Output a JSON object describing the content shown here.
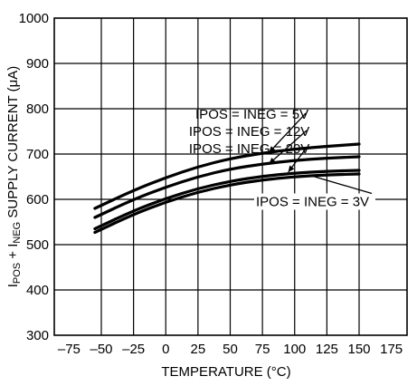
{
  "chart_data": {
    "type": "line",
    "xlabel": "TEMPERATURE (°C)",
    "ylabel_parts": {
      "i1": "I",
      "sub1": "POS",
      "mid": " + I",
      "sub2": "NEG",
      "rest": " SUPPLY CURRENT (μA)"
    },
    "xlim": [
      -75,
      175
    ],
    "ylim": [
      300,
      1000
    ],
    "xticks": [
      -75,
      -50,
      -25,
      0,
      25,
      50,
      75,
      100,
      125,
      150,
      175
    ],
    "xtick_labels": [
      "–75",
      "–50",
      "–25",
      "0",
      "25",
      "50",
      "75",
      "100",
      "125",
      "150",
      "175"
    ],
    "yticks": [
      300,
      400,
      500,
      600,
      700,
      800,
      900,
      1000
    ],
    "ytick_labels": [
      "300",
      "400",
      "500",
      "600",
      "700",
      "800",
      "900",
      "1000"
    ],
    "grid": true,
    "series": [
      {
        "x": [
          -55,
          -25,
          0,
          25,
          50,
          75,
          100,
          125,
          150
        ],
        "values": [
          580,
          620,
          648,
          672,
          690,
          702,
          711,
          717,
          722
        ]
      },
      {
        "x": [
          -55,
          -25,
          0,
          25,
          50,
          75,
          100,
          125,
          150
        ],
        "values": [
          560,
          600,
          627,
          650,
          667,
          678,
          686,
          691,
          694
        ]
      },
      {
        "x": [
          -55,
          -25,
          0,
          25,
          50,
          75,
          100,
          125,
          150
        ],
        "values": [
          535,
          575,
          602,
          624,
          640,
          651,
          658,
          662,
          664
        ]
      },
      {
        "x": [
          -55,
          -25,
          0,
          25,
          50,
          75,
          100,
          125,
          150
        ],
        "values": [
          527,
          567,
          594,
          616,
          632,
          643,
          650,
          654,
          656
        ]
      }
    ],
    "annotations": [
      {
        "text": "IPOS = INEG = 5V",
        "x": 23,
        "y": 778,
        "target": [
          80,
          703
        ]
      },
      {
        "text": "IPOS = INEG = 12V",
        "x": 18,
        "y": 740,
        "target": [
          80,
          678
        ]
      },
      {
        "text": "IPOS = INEG = 20V",
        "x": 18,
        "y": 702,
        "target": [
          95,
          660
        ]
      },
      {
        "text": "IPOS = INEG = 3V",
        "x": 70,
        "y": 585,
        "target": [
          113,
          652
        ]
      }
    ]
  }
}
